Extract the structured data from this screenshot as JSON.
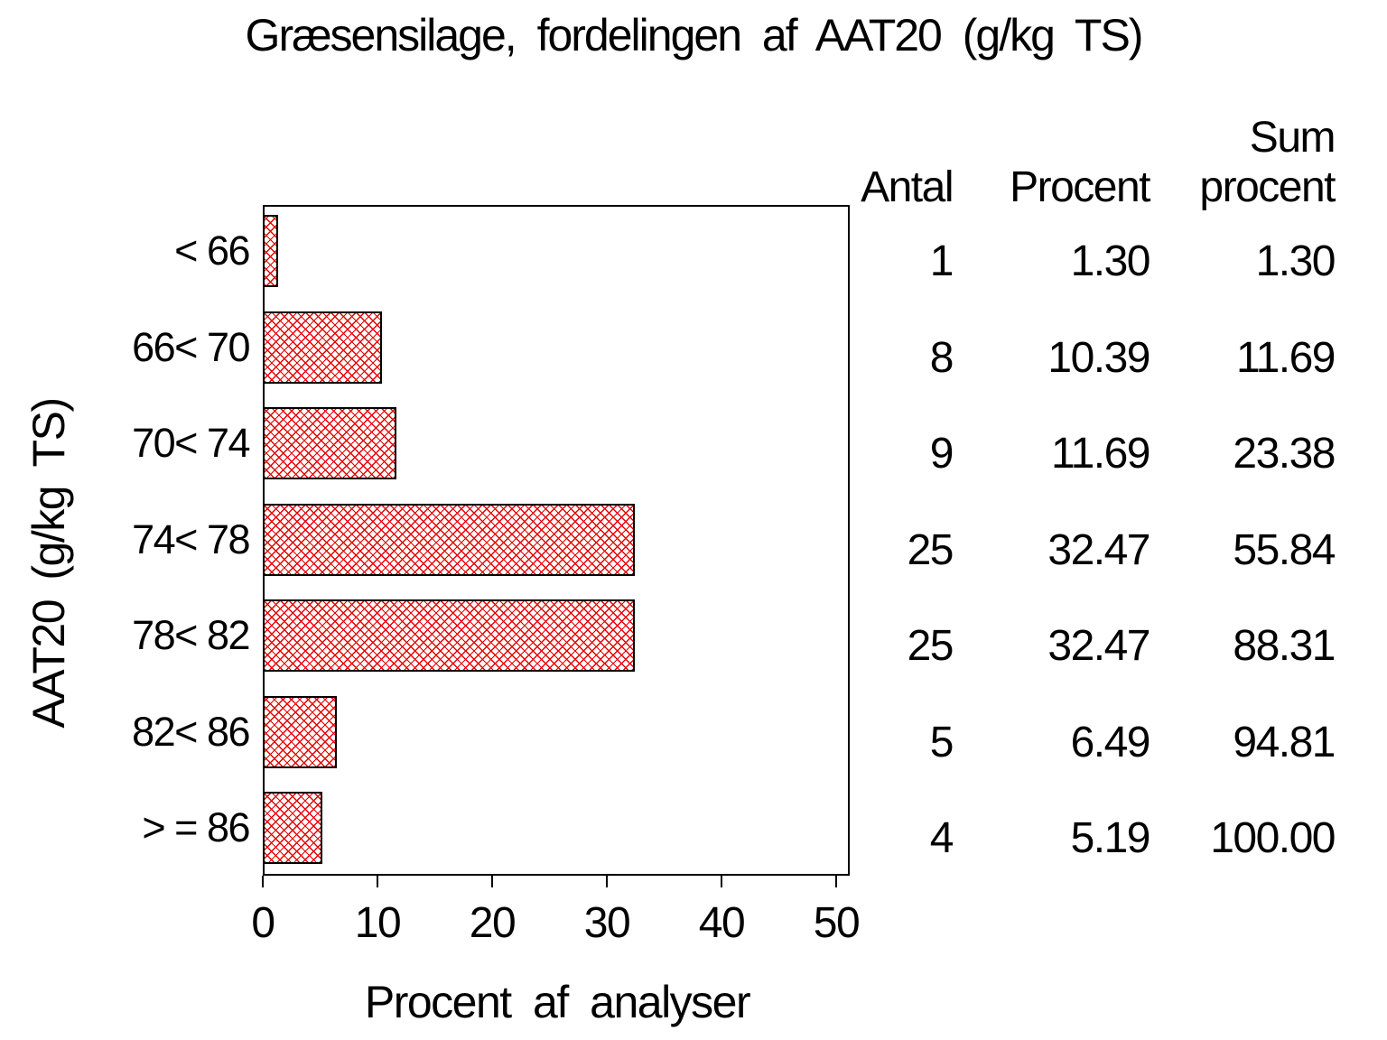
{
  "chart_data": {
    "type": "bar",
    "orientation": "horizontal",
    "title": "Græsensilage, fordelingen af AAT20 (g/kg TS)",
    "xlabel": "Procent af analyser",
    "ylabel": "AAT20 (g/kg TS)",
    "categories": [
      "< 66",
      "66< 70",
      "70< 74",
      "74< 78",
      "78< 82",
      "82< 86",
      "> = 86"
    ],
    "values": [
      1.3,
      10.39,
      11.69,
      32.47,
      32.47,
      6.49,
      5.19
    ],
    "counts": [
      1,
      8,
      9,
      25,
      25,
      5,
      4
    ],
    "cum_percent": [
      1.3,
      11.69,
      23.38,
      55.84,
      88.31,
      94.81,
      100.0
    ],
    "xlim": [
      0,
      50
    ],
    "xticks": [
      0,
      10,
      20,
      30,
      40,
      50
    ],
    "grid": false,
    "legend": "none",
    "bar_pattern": "crosshatch",
    "bar_color": "#e40000",
    "bar_border_color": "#000000",
    "table": {
      "col_headers": [
        {
          "line1": "",
          "line2": "Antal"
        },
        {
          "line1": "",
          "line2": "Procent"
        },
        {
          "line1": "Sum",
          "line2": "procent"
        }
      ],
      "rows": [
        [
          "1",
          "1.30",
          "1.30"
        ],
        [
          "8",
          "10.39",
          "11.69"
        ],
        [
          "9",
          "11.69",
          "23.38"
        ],
        [
          "25",
          "32.47",
          "55.84"
        ],
        [
          "25",
          "32.47",
          "88.31"
        ],
        [
          "5",
          "6.49",
          "94.81"
        ],
        [
          "4",
          "5.19",
          "100.00"
        ]
      ]
    }
  }
}
